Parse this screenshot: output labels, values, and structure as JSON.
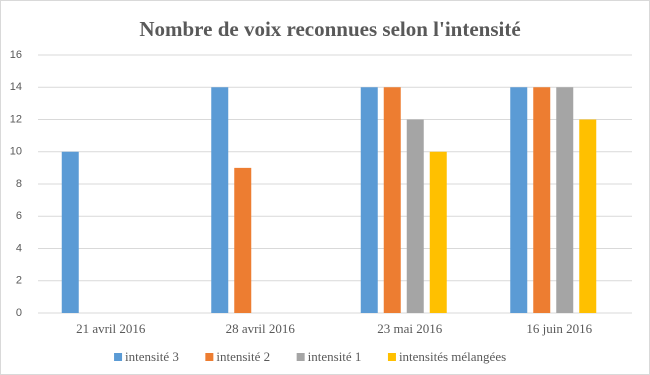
{
  "chart_data": {
    "type": "bar",
    "title": "Nombre de voix reconnues selon l'intensité",
    "categories": [
      "21 avril 2016",
      "28 avril 2016",
      "23 mai 2016",
      "16 juin 2016"
    ],
    "series": [
      {
        "name": "intensité 3",
        "color": "#5b9bd5",
        "values": [
          10,
          14,
          14,
          14
        ]
      },
      {
        "name": "intensité 2",
        "color": "#ed7d31",
        "values": [
          null,
          9,
          14,
          14
        ]
      },
      {
        "name": "intensité 1",
        "color": "#a5a5a5",
        "values": [
          null,
          null,
          12,
          14
        ]
      },
      {
        "name": "intensités mélangées",
        "color": "#ffc000",
        "values": [
          null,
          null,
          10,
          12
        ]
      }
    ],
    "ylim": [
      0,
      16
    ],
    "yticks": [
      0,
      2,
      4,
      6,
      8,
      10,
      12,
      14,
      16
    ],
    "grid": true,
    "legend": "bottom"
  }
}
